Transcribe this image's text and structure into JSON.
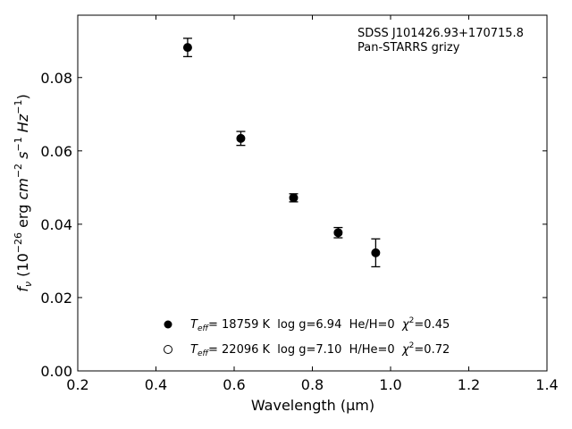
{
  "chart_data": {
    "type": "scatter",
    "xlabel": "Wavelength (μm)",
    "ylabel": "f_ν (10^-26 erg cm^-2 s^-1 Hz^-1)",
    "xlim": [
      0.2,
      1.4
    ],
    "ylim": [
      0.0,
      0.097
    ],
    "xticks": [
      0.2,
      0.4,
      0.6,
      0.8,
      1.0,
      1.2,
      1.4
    ],
    "yticks": [
      0.0,
      0.02,
      0.04,
      0.06,
      0.08
    ],
    "xtick_labels": [
      "0.2",
      "0.4",
      "0.6",
      "0.8",
      "1.0",
      "1.2",
      "1.4"
    ],
    "ytick_labels": [
      "0.00",
      "0.02",
      "0.04",
      "0.06",
      "0.08"
    ],
    "grid": false,
    "annotations": [
      "SDSS J101426.93+170715.8",
      "Pan-STARRS grizy"
    ],
    "series": [
      {
        "marker": "filled-circle",
        "color": "#000000",
        "points": [
          {
            "x": 0.481,
            "y": 0.0882,
            "err": 0.0025
          },
          {
            "x": 0.617,
            "y": 0.0634,
            "err": 0.0019
          },
          {
            "x": 0.752,
            "y": 0.0472,
            "err": 0.0011
          },
          {
            "x": 0.866,
            "y": 0.0377,
            "err": 0.0014
          },
          {
            "x": 0.962,
            "y": 0.0322,
            "err": 0.0038
          }
        ]
      },
      {
        "marker": "open-circle",
        "color": "#000000",
        "points": []
      }
    ],
    "legend": {
      "position": "lower-center",
      "entries": [
        {
          "marker": "filled-circle",
          "label_parts": {
            "teff_prefix": "T",
            "teff_sub": "eff",
            "rest": "= 18759 K  log g=6.94  He/H=0  ",
            "chi": "χ",
            "chi_sup": "2",
            "chi_val": "=0.45"
          }
        },
        {
          "marker": "open-circle",
          "label_parts": {
            "teff_prefix": "T",
            "teff_sub": "eff",
            "rest": "= 22096 K  log g=7.10  H/He=0  ",
            "chi": "χ",
            "chi_sup": "2",
            "chi_val": "=0.72"
          }
        }
      ]
    }
  }
}
